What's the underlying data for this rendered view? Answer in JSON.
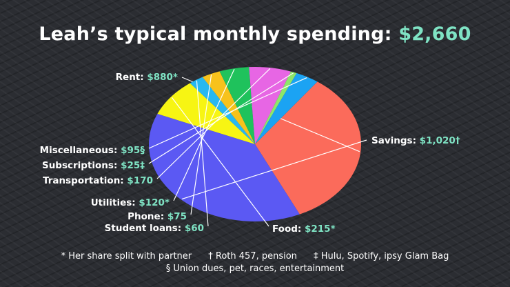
{
  "title": {
    "text": "Leah’s typical monthly spending: ",
    "total": "$2,660",
    "accent_color": "#7fe3c4"
  },
  "chart_data": {
    "type": "pie",
    "title": "Leah’s typical monthly spending: $2,660",
    "total": 2660,
    "slices": [
      {
        "name": "Rent",
        "value": 880,
        "label": "Rent:",
        "value_label": "$880*",
        "color": "#fb6b5b"
      },
      {
        "name": "Savings",
        "value": 1020,
        "label": "Savings:",
        "value_label": "$1,020†",
        "color": "#5b59f3"
      },
      {
        "name": "Food",
        "value": 215,
        "label": "Food:",
        "value_label": "$215*",
        "color": "#f7f513"
      },
      {
        "name": "Student loans",
        "value": 60,
        "label": "Student loans:",
        "value_label": "$60",
        "color": "#28b8f0"
      },
      {
        "name": "Phone",
        "value": 75,
        "label": "Phone:",
        "value_label": "$75",
        "color": "#f7c21c"
      },
      {
        "name": "Utilities",
        "value": 120,
        "label": "Utilities:",
        "value_label": "$120*",
        "color": "#1fc25c"
      },
      {
        "name": "Transportation",
        "value": 170,
        "label": "Transportation:",
        "value_label": "$170",
        "color": "#e766e4"
      },
      {
        "name": "Subscriptions",
        "value": 25,
        "label": "Subscriptions:",
        "value_label": "$25‡",
        "color": "#8ee66a"
      },
      {
        "name": "Miscellaneous",
        "value": 95,
        "label": "Miscellaneous:",
        "value_label": "$95§",
        "color": "#1ba3f3"
      }
    ],
    "label_color": "#ffffff",
    "value_color": "#7fe3c4"
  },
  "footnotes": {
    "line1": [
      "* Her share split with partner",
      "† Roth 457, pension",
      "‡ Hulu, Spotify, ipsy Glam Bag"
    ],
    "line2": "§ Union dues, pet, races, entertainment"
  }
}
